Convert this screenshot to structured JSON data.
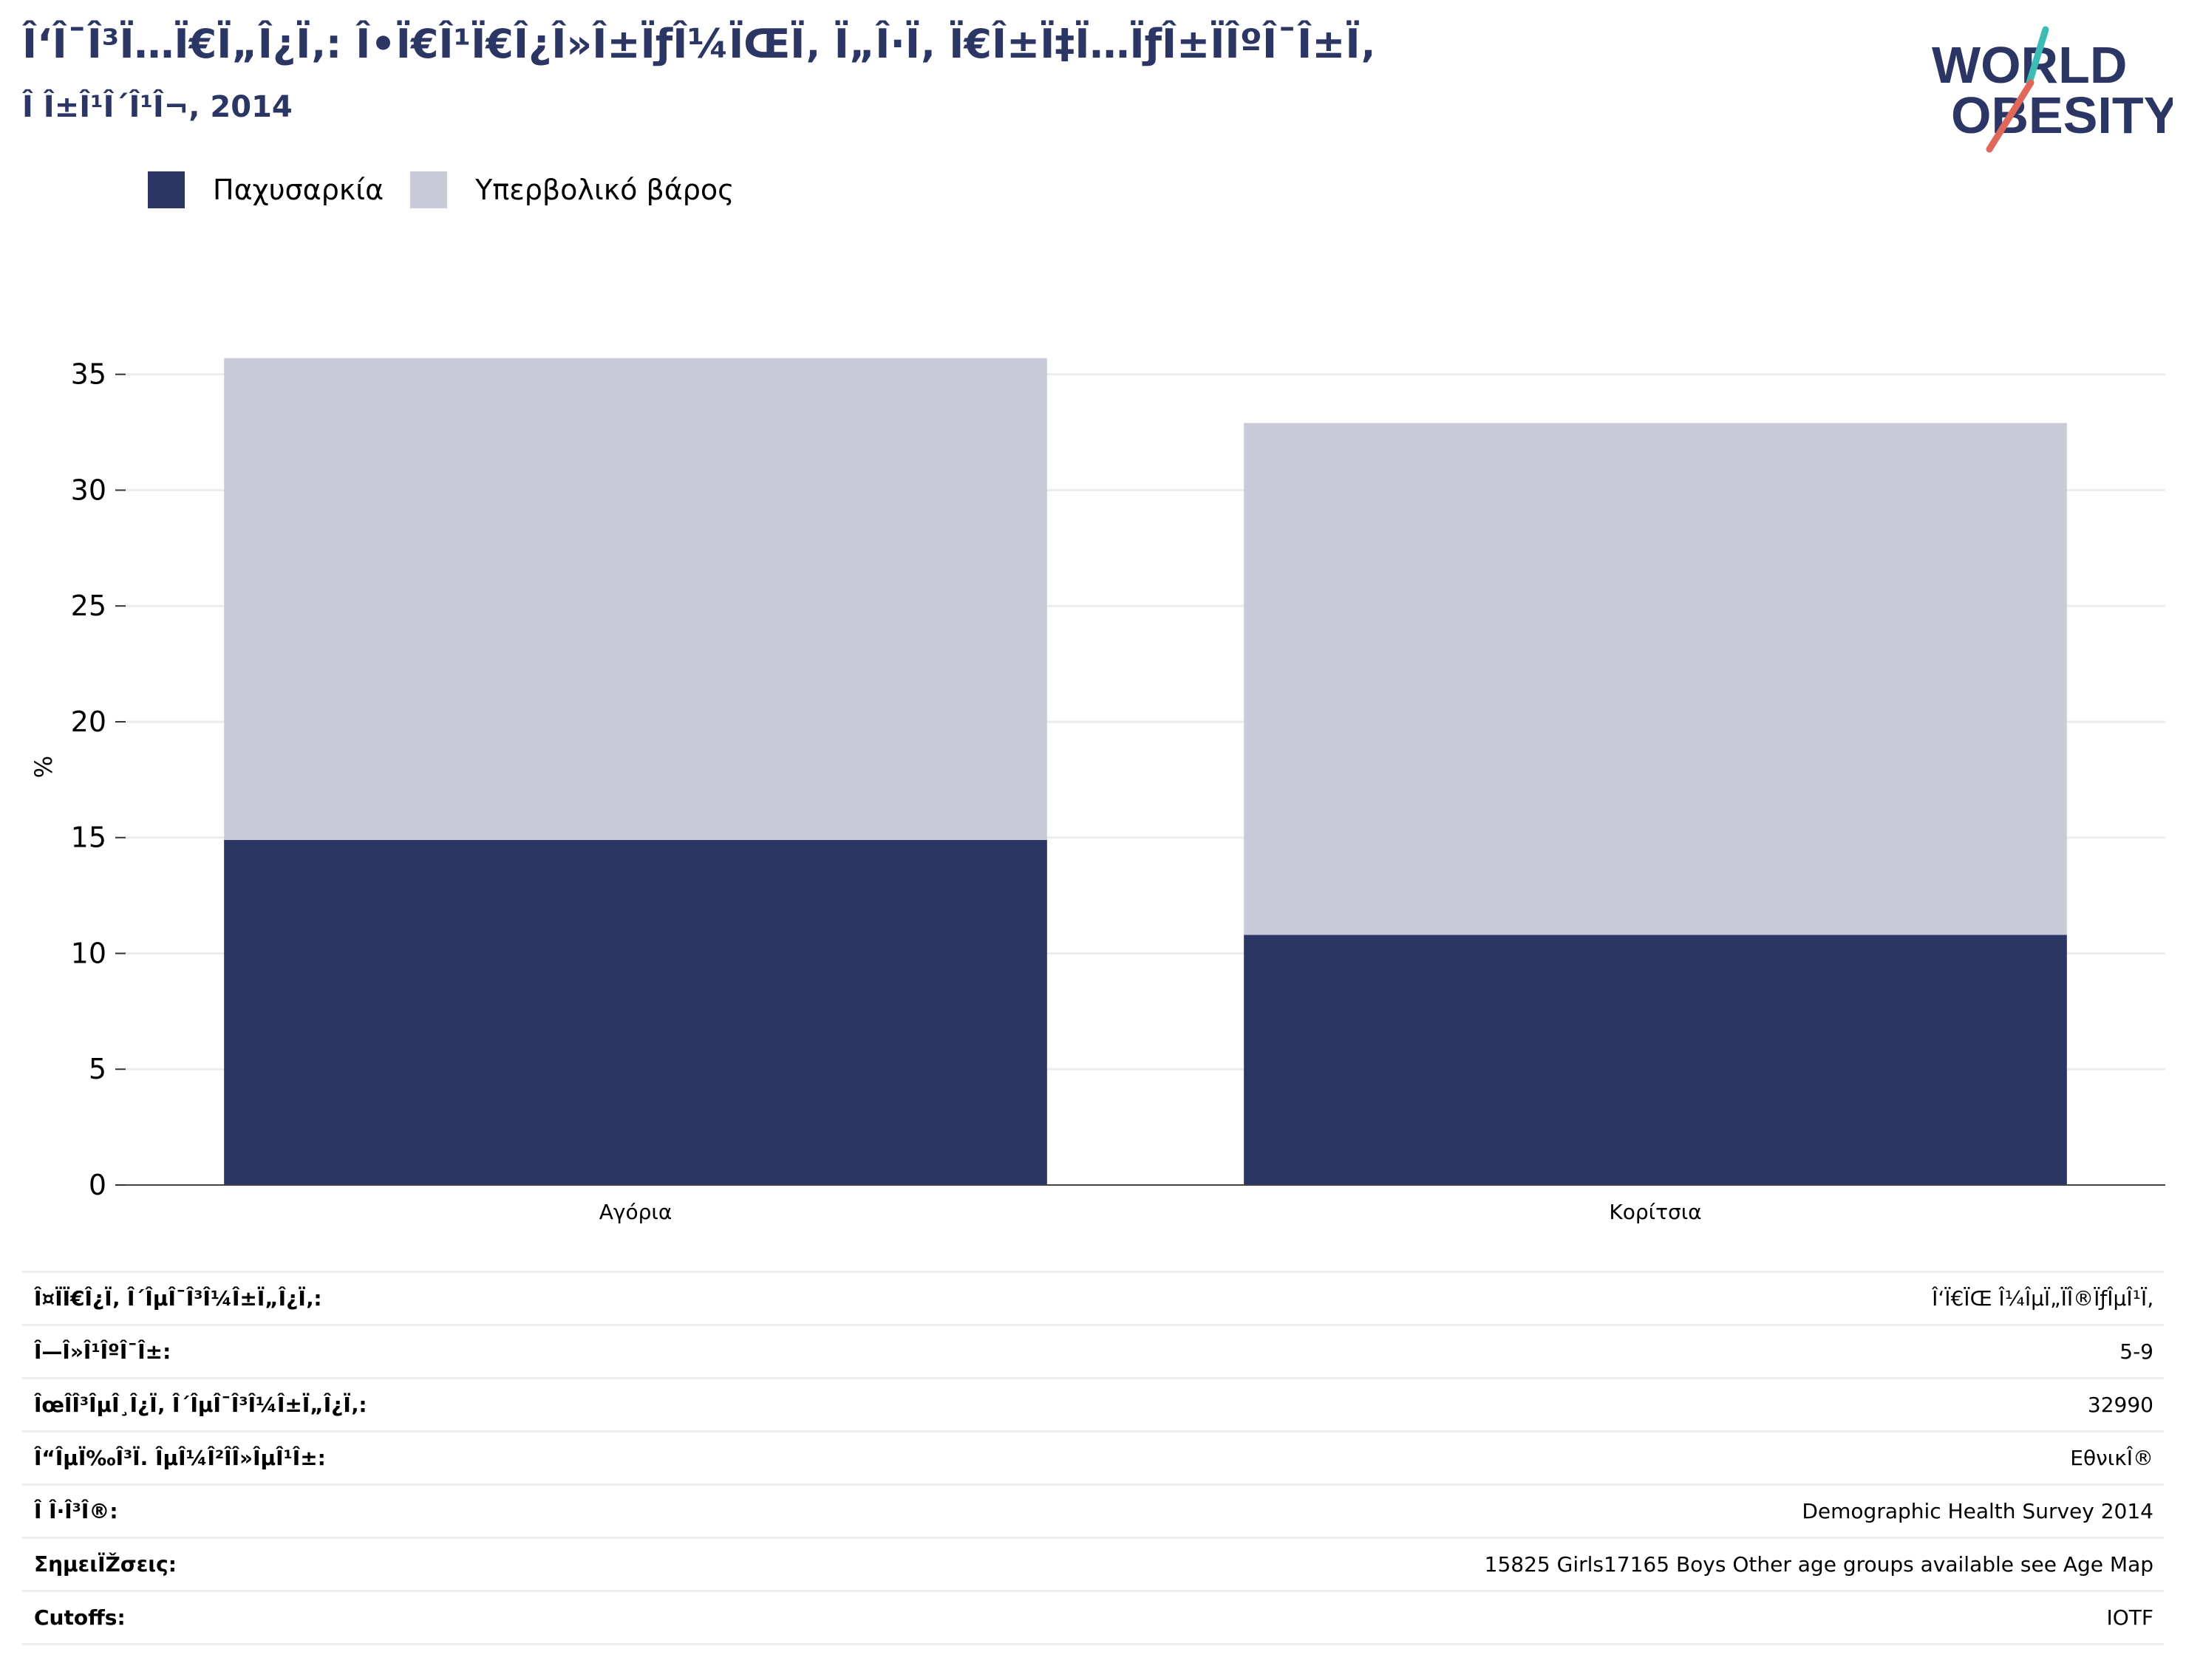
{
  "header": {
    "title": "Î‘Î¯Î³Ï…Ï€Ï„Î¿Ï‚: Î•Ï€Î¹Ï€Î¿Î»Î±ÏƒÎ¼ÏŒÏ‚ Ï„Î·Ï‚ Ï€Î±Ï‡Ï…ÏƒÎ±ÏÎºÎ¯Î±Ï‚",
    "subtitle": "Î Î±Î¹Î´Î¹Î¬, 2014"
  },
  "logo": {
    "line1": "WORLD",
    "line2": "OBESITY"
  },
  "colors": {
    "obesity": "#2b3664",
    "overweight": "#cacbd8",
    "logo_text": "#2b3664",
    "logo_teal": "#3bbdb5",
    "logo_red": "#e0685a"
  },
  "chart_data": {
    "type": "bar",
    "stacked": true,
    "categories": [
      "Αγόρια",
      "Κορίτσια"
    ],
    "series": [
      {
        "name": "Παχυσαρκία",
        "values": [
          14.9,
          10.8
        ]
      },
      {
        "name": "Υπερβολικό βάρος",
        "values": [
          20.8,
          22.1
        ]
      }
    ],
    "totals": [
      35.7,
      32.9
    ],
    "title": "",
    "xlabel": "",
    "ylabel": "%",
    "ylim": [
      0,
      37
    ],
    "yticks": [
      0,
      5,
      10,
      15,
      20,
      25,
      30,
      35
    ],
    "grid": true,
    "legend_position": "top-left"
  },
  "meta": [
    {
      "label": "Î¤ÏÏ€Î¿Ï‚ Î´ÎµÎ¯Î³Î¼Î±Ï„Î¿Ï‚:",
      "value": "Î‘Ï€ÏŒ Î¼ÎµÏ„ÏÎ®ÏƒÎµÎ¹Ï‚"
    },
    {
      "label": "Î—Î»Î¹ÎºÎ¯Î±:",
      "value": "5-9"
    },
    {
      "label": "ÎœÎ­Î³ÎµÎ¸Î¿Ï‚ Î´ÎµÎ¯Î³Î¼Î±Ï„Î¿Ï‚:",
      "value": "32990"
    },
    {
      "label": "Î“ÎµÏ‰Î³Ï. ÎµÎ¼Î²Î­Î»ÎµÎ¹Î±:",
      "value": "EθνικÎ®"
    },
    {
      "label": "Î Î·Î³Î®:",
      "value": "Demographic Health Survey 2014"
    },
    {
      "label": "ΣημειÏŽσεις:",
      "value": "15825 Girls17165 Boys Other age groups available see Age Map"
    },
    {
      "label": "Cutoffs:",
      "value": "IOTF"
    }
  ]
}
